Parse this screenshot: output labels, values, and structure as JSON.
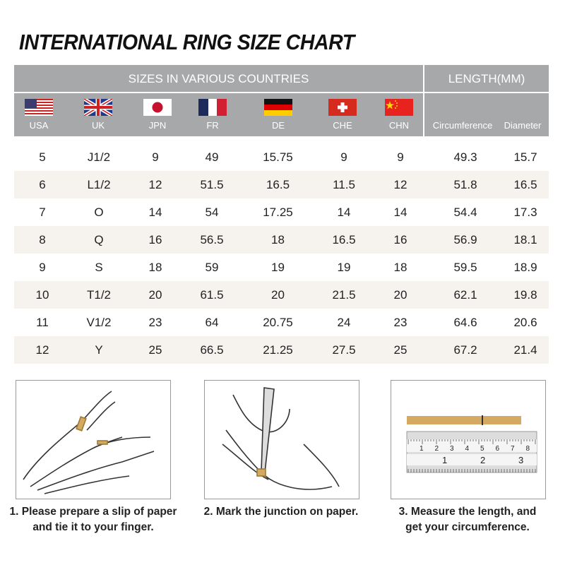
{
  "title": "INTERNATIONAL RING SIZE CHART",
  "header": {
    "sizes_label": "SIZES IN VARIOUS COUNTRIES",
    "length_label": "LENGTH(MM)",
    "countries": [
      "USA",
      "UK",
      "JPN",
      "FR",
      "DE",
      "CHE",
      "CHN"
    ],
    "length_columns": [
      "Circumference",
      "Diameter"
    ]
  },
  "rows": [
    [
      "5",
      "J1/2",
      "9",
      "49",
      "15.75",
      "9",
      "9",
      "49.3",
      "15.7"
    ],
    [
      "6",
      "L1/2",
      "12",
      "51.5",
      "16.5",
      "11.5",
      "12",
      "51.8",
      "16.5"
    ],
    [
      "7",
      "O",
      "14",
      "54",
      "17.25",
      "14",
      "14",
      "54.4",
      "17.3"
    ],
    [
      "8",
      "Q",
      "16",
      "56.5",
      "18",
      "16.5",
      "16",
      "56.9",
      "18.1"
    ],
    [
      "9",
      "S",
      "18",
      "59",
      "19",
      "19",
      "18",
      "59.5",
      "18.9"
    ],
    [
      "10",
      "T1/2",
      "20",
      "61.5",
      "20",
      "21.5",
      "20",
      "62.1",
      "19.8"
    ],
    [
      "11",
      "V1/2",
      "23",
      "64",
      "20.75",
      "24",
      "23",
      "64.6",
      "20.6"
    ],
    [
      "12",
      "Y",
      "25",
      "66.5",
      "21.25",
      "27.5",
      "25",
      "67.2",
      "21.4"
    ]
  ],
  "steps": [
    {
      "line1": "1. Please prepare a slip of paper",
      "line2": "and tie it to your finger."
    },
    {
      "line1": "2. Mark the junction on paper.",
      "line2": ""
    },
    {
      "line1": "3. Measure the length, and",
      "line2": "get your circumference."
    }
  ],
  "ruler": {
    "top_marks": [
      "1",
      "2",
      "3",
      "4",
      "5",
      "6",
      "7",
      "8"
    ],
    "bottom_marks": [
      "1",
      "2",
      "3"
    ]
  },
  "colors": {
    "header_bg": "#a7a8aa",
    "alt_row": "#f6f2ee",
    "paper_strip": "#d4aa63"
  }
}
